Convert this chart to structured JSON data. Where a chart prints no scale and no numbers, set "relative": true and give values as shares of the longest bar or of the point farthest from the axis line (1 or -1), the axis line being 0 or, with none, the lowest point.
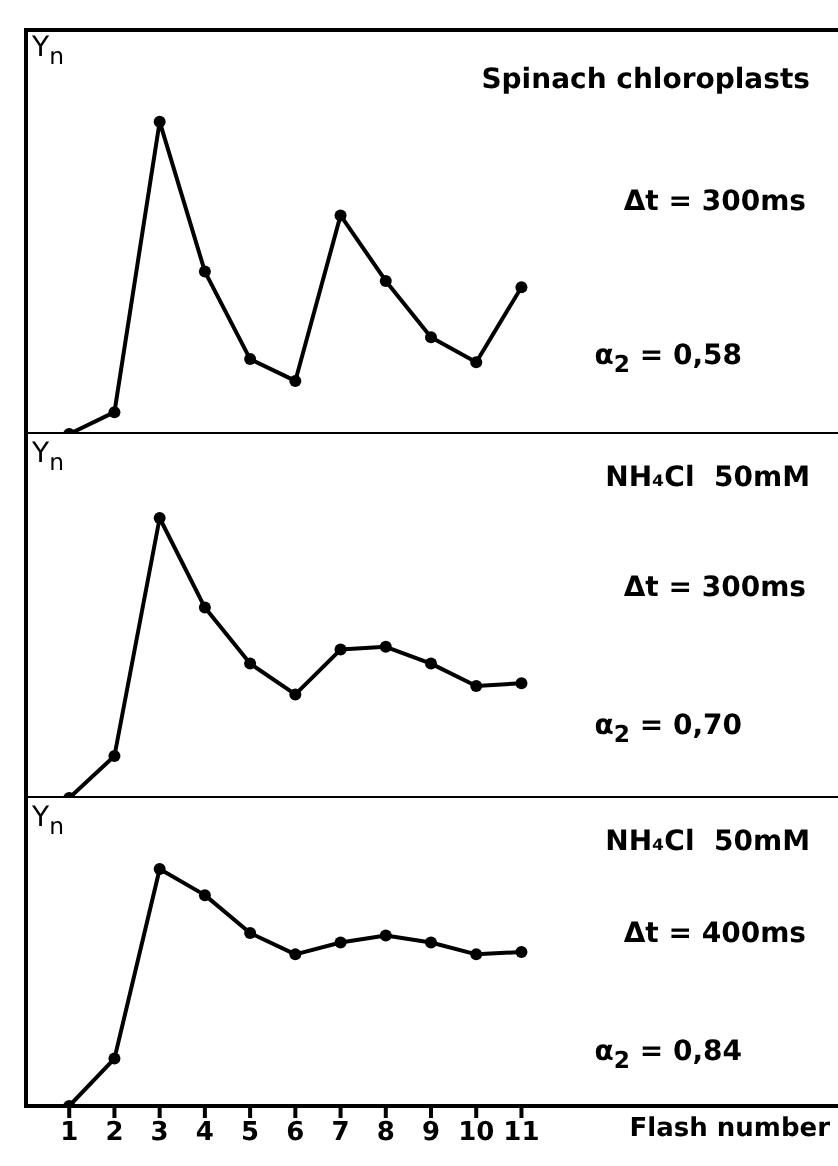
{
  "chart_data": [
    {
      "type": "line",
      "title": "Spinach chloroplasts",
      "ylabel": "Y$_{n}$",
      "x": [
        1,
        2,
        3,
        4,
        5,
        6,
        7,
        8,
        9,
        10,
        11
      ],
      "values": [
        0,
        0.07,
        1,
        0.52,
        0.24,
        0.17,
        0.7,
        0.49,
        0.31,
        0.23,
        0.47
      ],
      "color": "#000000",
      "relative": true,
      "xlim": [
        0,
        18
      ],
      "xticks": [
        1,
        2,
        3,
        4,
        5,
        6,
        7,
        8,
        9,
        10,
        11
      ],
      "tick_labels": false,
      "marker": "circle",
      "line_style": "solid",
      "annotations": [
        "Δt = 300ms",
        "α$_{2}$ = 0,58"
      ]
    },
    {
      "type": "line",
      "title": "NH₄Cl  50mM",
      "ylabel": "Y$_{n}$",
      "x": [
        1,
        2,
        3,
        4,
        5,
        6,
        7,
        8,
        9,
        10,
        11
      ],
      "values": [
        0,
        0.15,
        1,
        0.68,
        0.48,
        0.37,
        0.53,
        0.54,
        0.48,
        0.4,
        0.41
      ],
      "color": "#000000",
      "relative": true,
      "xlim": [
        0,
        18
      ],
      "xticks": [
        1,
        2,
        3,
        4,
        5,
        6,
        7,
        8,
        9,
        10,
        11
      ],
      "tick_labels": false,
      "marker": "circle",
      "line_style": "solid",
      "annotations": [
        "Δt = 300ms",
        "α$_{2}$ = 0,70"
      ]
    },
    {
      "type": "line",
      "title": "NH₄Cl  50mM",
      "ylabel": "Y$_{n}$",
      "xlabel": "Flash number",
      "x": [
        1,
        2,
        3,
        4,
        5,
        6,
        7,
        8,
        9,
        10,
        11
      ],
      "values": [
        0,
        0.2,
        1,
        0.89,
        0.73,
        0.64,
        0.69,
        0.72,
        0.69,
        0.64,
        0.65
      ],
      "color": "#000000",
      "relative": true,
      "xlim": [
        0,
        18
      ],
      "xticks": [
        1,
        2,
        3,
        4,
        5,
        6,
        7,
        8,
        9,
        10,
        11
      ],
      "tick_labels": "x",
      "marker": "circle",
      "line_style": "solid",
      "annotations": [
        "Δt = 400ms",
        "α$_{2}$ = 0,84"
      ]
    }
  ]
}
